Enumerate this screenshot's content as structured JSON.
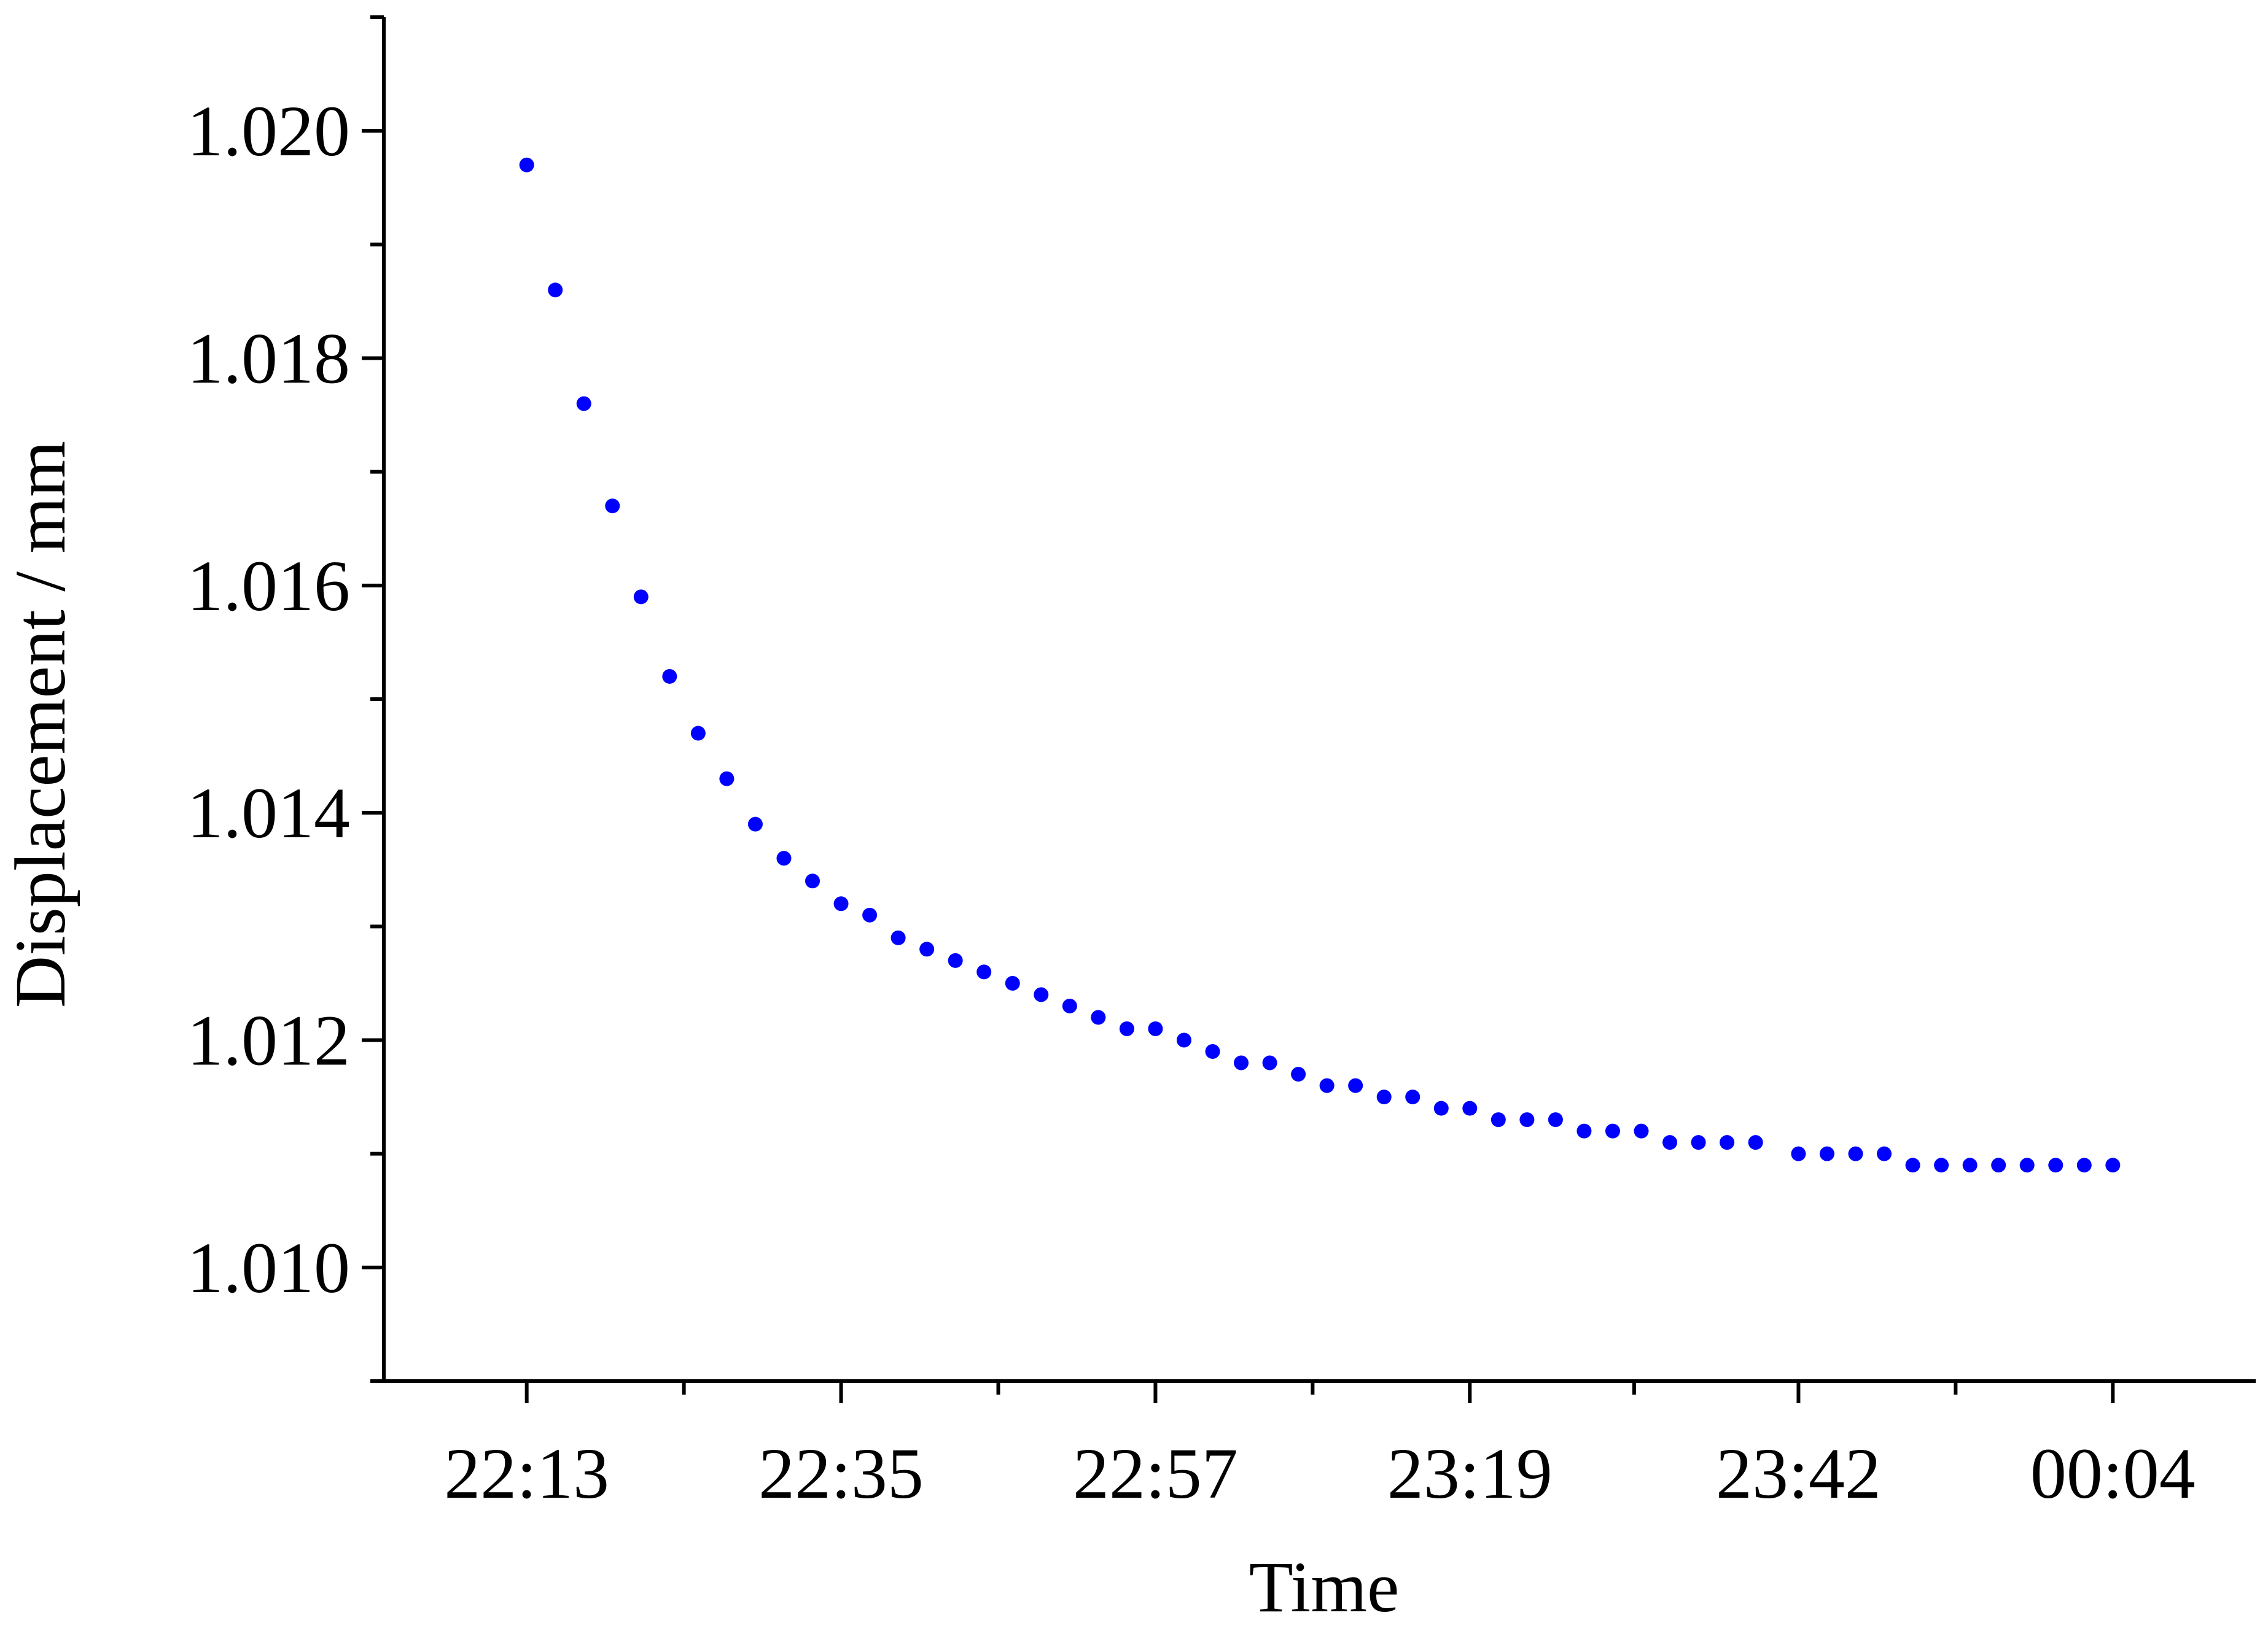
{
  "chart_data": {
    "type": "scatter",
    "title": "",
    "xlabel": "Time",
    "ylabel": "Displacement / mm",
    "x_tick_labels": [
      "22:13",
      "22:35",
      "22:57",
      "23:19",
      "23:42",
      "00:04"
    ],
    "y_tick_labels": [
      "1.010",
      "1.012",
      "1.014",
      "1.016",
      "1.018",
      "1.020"
    ],
    "x_range_minutes_start": "22:03",
    "x_range_minutes_end": "00:14",
    "ylim": [
      1.009,
      1.021
    ],
    "grid": false,
    "legend": "none",
    "series": [
      {
        "color": "#0000ff",
        "marker": "circle",
        "points": [
          [
            "22:13",
            1.0197
          ],
          [
            "22:15",
            1.0186
          ],
          [
            "22:17",
            1.0176
          ],
          [
            "22:19",
            1.0167
          ],
          [
            "22:21",
            1.0159
          ],
          [
            "22:23",
            1.0152
          ],
          [
            "22:25",
            1.0147
          ],
          [
            "22:27",
            1.0143
          ],
          [
            "22:29",
            1.0139
          ],
          [
            "22:31",
            1.0136
          ],
          [
            "22:33",
            1.0134
          ],
          [
            "22:35",
            1.0132
          ],
          [
            "22:37",
            1.0131
          ],
          [
            "22:39",
            1.0129
          ],
          [
            "22:41",
            1.0128
          ],
          [
            "22:43",
            1.0127
          ],
          [
            "22:45",
            1.0126
          ],
          [
            "22:47",
            1.0125
          ],
          [
            "22:49",
            1.0124
          ],
          [
            "22:51",
            1.0123
          ],
          [
            "22:53",
            1.0122
          ],
          [
            "22:55",
            1.0121
          ],
          [
            "22:57",
            1.0121
          ],
          [
            "22:59",
            1.012
          ],
          [
            "23:01",
            1.0119
          ],
          [
            "23:03",
            1.0118
          ],
          [
            "23:05",
            1.0118
          ],
          [
            "23:07",
            1.0117
          ],
          [
            "23:09",
            1.0116
          ],
          [
            "23:11",
            1.0116
          ],
          [
            "23:13",
            1.0115
          ],
          [
            "23:15",
            1.0115
          ],
          [
            "23:17",
            1.0114
          ],
          [
            "23:19",
            1.0114
          ],
          [
            "23:21",
            1.0113
          ],
          [
            "23:23",
            1.0113
          ],
          [
            "23:25",
            1.0113
          ],
          [
            "23:27",
            1.0112
          ],
          [
            "23:29",
            1.0112
          ],
          [
            "23:31",
            1.0112
          ],
          [
            "23:33",
            1.0111
          ],
          [
            "23:35",
            1.0111
          ],
          [
            "23:37",
            1.0111
          ],
          [
            "23:39",
            1.0111
          ],
          [
            "23:42",
            1.011
          ],
          [
            "23:44",
            1.011
          ],
          [
            "23:46",
            1.011
          ],
          [
            "23:48",
            1.011
          ],
          [
            "23:50",
            1.0109
          ],
          [
            "23:52",
            1.0109
          ],
          [
            "23:54",
            1.0109
          ],
          [
            "23:56",
            1.0109
          ],
          [
            "23:58",
            1.0109
          ],
          [
            "00:00",
            1.0109
          ],
          [
            "00:02",
            1.0109
          ],
          [
            "00:04",
            1.0109
          ]
        ]
      }
    ]
  }
}
